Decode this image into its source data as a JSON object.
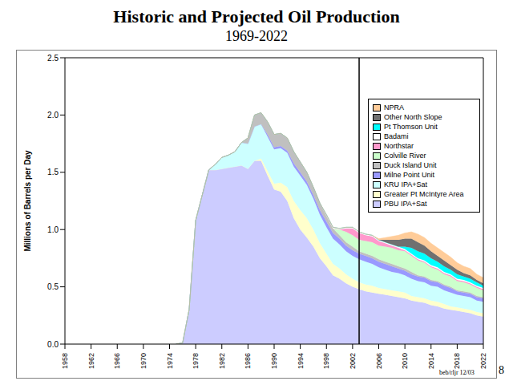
{
  "chart_data": {
    "type": "area",
    "title": "Historic and Projected Oil Production",
    "subtitle": "1969-2022",
    "y_label": "Millions of Barrels per Day",
    "stacked": true,
    "grid": false,
    "legend": "top-right",
    "reference_lines": [
      2003
    ],
    "annotations": [
      "beb/rljr 12/03",
      "8"
    ],
    "xlim": [
      1958,
      2022
    ],
    "xticks": [
      1958,
      1962,
      1966,
      1970,
      1974,
      1978,
      1982,
      1986,
      1990,
      1994,
      1998,
      2002,
      2006,
      2010,
      2014,
      2018,
      2022
    ],
    "ylim": [
      0,
      2.5
    ],
    "yticks": [
      {
        "value": 0,
        "label": "0.0"
      },
      {
        "value": 0.5,
        "label": "0.5"
      },
      {
        "value": 1,
        "label": "1.0"
      },
      {
        "value": 1.5,
        "label": "1.5"
      },
      {
        "value": 2,
        "label": "2.0"
      },
      {
        "value": 2.5,
        "label": "2.5"
      }
    ],
    "x": [
      1975,
      1976,
      1977,
      1978,
      1979,
      1980,
      1981,
      1982,
      1983,
      1984,
      1985,
      1986,
      1987,
      1988,
      1989,
      1990,
      1991,
      1992,
      1993,
      1994,
      1995,
      1996,
      1997,
      1998,
      1999,
      2000,
      2001,
      2002,
      2003,
      2004,
      2005,
      2006,
      2007,
      2008,
      2009,
      2010,
      2011,
      2012,
      2013,
      2014,
      2015,
      2016,
      2017,
      2018,
      2019,
      2020,
      2021,
      2022
    ],
    "series": [
      {
        "name": "PBU IPA+Sat",
        "color": "#ccccff",
        "values": [
          0,
          0.01,
          0.3,
          1.08,
          1.3,
          1.52,
          1.52,
          1.53,
          1.54,
          1.55,
          1.56,
          1.53,
          1.6,
          1.6,
          1.47,
          1.35,
          1.33,
          1.25,
          1.1,
          1.0,
          0.93,
          0.85,
          0.75,
          0.68,
          0.6,
          0.57,
          0.53,
          0.5,
          0.48,
          0.46,
          0.45,
          0.44,
          0.43,
          0.42,
          0.41,
          0.4,
          0.38,
          0.37,
          0.36,
          0.34,
          0.33,
          0.31,
          0.3,
          0.29,
          0.28,
          0.27,
          0.25,
          0.24
        ]
      },
      {
        "name": "Greater Pt McIntyre Area",
        "color": "#ffffcc",
        "values": [
          0,
          0,
          0,
          0,
          0,
          0,
          0,
          0,
          0,
          0,
          0,
          0,
          0,
          0.02,
          0.04,
          0.05,
          0.08,
          0.12,
          0.15,
          0.17,
          0.17,
          0.15,
          0.13,
          0.11,
          0.1,
          0.09,
          0.08,
          0.07,
          0.06,
          0.06,
          0.06,
          0.05,
          0.05,
          0.05,
          0.05,
          0.05,
          0.04,
          0.04,
          0.04,
          0.04,
          0.04,
          0.04,
          0.03,
          0.03,
          0.03,
          0.03,
          0.03,
          0.03
        ]
      },
      {
        "name": "KRU IPA+Sat",
        "color": "#ccffff",
        "values": [
          0,
          0,
          0,
          0,
          0,
          0,
          0.05,
          0.1,
          0.11,
          0.13,
          0.2,
          0.22,
          0.3,
          0.3,
          0.3,
          0.3,
          0.3,
          0.3,
          0.3,
          0.3,
          0.29,
          0.27,
          0.25,
          0.23,
          0.22,
          0.21,
          0.2,
          0.2,
          0.2,
          0.2,
          0.19,
          0.18,
          0.17,
          0.16,
          0.16,
          0.15,
          0.15,
          0.14,
          0.14,
          0.13,
          0.13,
          0.12,
          0.12,
          0.11,
          0.11,
          0.11,
          0.1,
          0.1
        ]
      },
      {
        "name": "Milne Point Unit",
        "color": "#9999ff",
        "values": [
          0,
          0,
          0,
          0,
          0,
          0,
          0,
          0,
          0,
          0,
          0,
          0,
          0,
          0,
          0.02,
          0.02,
          0.02,
          0.02,
          0.03,
          0.03,
          0.03,
          0.03,
          0.04,
          0.05,
          0.05,
          0.05,
          0.05,
          0.05,
          0.05,
          0.05,
          0.05,
          0.05,
          0.05,
          0.05,
          0.04,
          0.04,
          0.04,
          0.04,
          0.04,
          0.04,
          0.04,
          0.04,
          0.04,
          0.03,
          0.03,
          0.03,
          0.03,
          0.03
        ]
      },
      {
        "name": "Duck Island Unit",
        "color": "#c0c0c0",
        "values": [
          0,
          0,
          0,
          0,
          0,
          0,
          0,
          0,
          0,
          0,
          0,
          0.05,
          0.1,
          0.1,
          0.11,
          0.11,
          0.11,
          0.11,
          0.1,
          0.09,
          0.08,
          0.07,
          0.06,
          0.05,
          0.04,
          0.03,
          0.03,
          0.03,
          0.02,
          0.02,
          0.02,
          0.02,
          0.02,
          0.02,
          0.02,
          0.02,
          0.02,
          0.01,
          0.01,
          0.01,
          0.01,
          0.01,
          0.01,
          0.01,
          0.01,
          0.01,
          0.01,
          0.01
        ]
      },
      {
        "name": "Colville River",
        "color": "#ccffcc",
        "values": [
          0,
          0,
          0,
          0,
          0,
          0,
          0,
          0,
          0,
          0,
          0,
          0,
          0,
          0,
          0,
          0,
          0,
          0,
          0,
          0,
          0,
          0,
          0,
          0,
          0,
          0.05,
          0.09,
          0.1,
          0.1,
          0.11,
          0.12,
          0.12,
          0.13,
          0.14,
          0.14,
          0.15,
          0.14,
          0.13,
          0.12,
          0.11,
          0.1,
          0.09,
          0.09,
          0.08,
          0.08,
          0.07,
          0.07,
          0.06
        ]
      },
      {
        "name": "Northstar",
        "color": "#ff99cc",
        "values": [
          0,
          0,
          0,
          0,
          0,
          0,
          0,
          0,
          0,
          0,
          0,
          0,
          0,
          0,
          0,
          0,
          0,
          0,
          0,
          0,
          0,
          0,
          0,
          0,
          0,
          0,
          0.03,
          0.06,
          0.06,
          0.05,
          0.05,
          0.04,
          0.03,
          0.02,
          0.02,
          0.01,
          0.01,
          0.01,
          0.01,
          0.01,
          0.01,
          0.01,
          0.01,
          0.01,
          0.01,
          0.01,
          0.01,
          0.01
        ]
      },
      {
        "name": "Badami",
        "color": "#ffffff",
        "values": [
          0,
          0,
          0,
          0,
          0,
          0,
          0,
          0,
          0,
          0,
          0,
          0,
          0,
          0,
          0,
          0,
          0,
          0,
          0,
          0,
          0,
          0,
          0,
          0.01,
          0.01,
          0.01,
          0.01,
          0.01,
          0.01,
          0.01,
          0.01,
          0.01,
          0.01,
          0.01,
          0.01,
          0.01,
          0.01,
          0.01,
          0.01,
          0.01,
          0.01,
          0.01,
          0.01,
          0.01,
          0.01,
          0.01,
          0.01,
          0.01
        ]
      },
      {
        "name": "Pt Thomson Unit",
        "color": "#00ffff",
        "values": [
          0,
          0,
          0,
          0,
          0,
          0,
          0,
          0,
          0,
          0,
          0,
          0,
          0,
          0,
          0,
          0,
          0,
          0,
          0,
          0,
          0,
          0,
          0,
          0,
          0,
          0,
          0,
          0,
          0,
          0,
          0,
          0,
          0,
          0,
          0,
          0.02,
          0.05,
          0.06,
          0.06,
          0.06,
          0.05,
          0.05,
          0.04,
          0.04,
          0.03,
          0.03,
          0.03,
          0.02
        ]
      },
      {
        "name": "Other North Slope",
        "color": "#707070",
        "values": [
          0,
          0,
          0,
          0,
          0,
          0,
          0,
          0,
          0,
          0,
          0,
          0,
          0,
          0,
          0,
          0,
          0,
          0,
          0,
          0,
          0,
          0,
          0,
          0,
          0,
          0,
          0,
          0,
          0,
          0,
          0,
          0,
          0.02,
          0.04,
          0.06,
          0.07,
          0.08,
          0.08,
          0.07,
          0.06,
          0.05,
          0.05,
          0.04,
          0.04,
          0.03,
          0.03,
          0.02,
          0.02
        ]
      },
      {
        "name": "NPRA",
        "color": "#ffcc99",
        "values": [
          0,
          0,
          0,
          0,
          0,
          0,
          0,
          0,
          0,
          0,
          0,
          0,
          0,
          0,
          0,
          0,
          0,
          0,
          0,
          0,
          0,
          0,
          0,
          0,
          0,
          0,
          0,
          0,
          0,
          0,
          0,
          0.01,
          0.02,
          0.03,
          0.04,
          0.05,
          0.06,
          0.07,
          0.07,
          0.07,
          0.07,
          0.07,
          0.07,
          0.06,
          0.06,
          0.06,
          0.05,
          0.05
        ]
      }
    ]
  }
}
